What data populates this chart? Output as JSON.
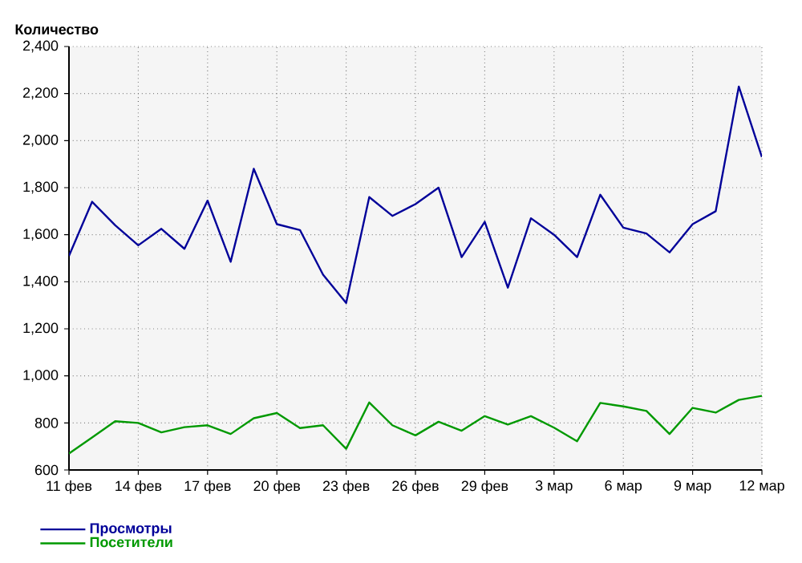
{
  "chart_data": {
    "type": "line",
    "ylabel": "Количество",
    "categories": [
      "11 фев",
      null,
      null,
      "14 фев",
      null,
      null,
      "17 фев",
      null,
      null,
      "20 фев",
      null,
      null,
      "23 фев",
      null,
      null,
      "26 фев",
      null,
      null,
      "29 фев",
      null,
      null,
      "3 мар",
      null,
      null,
      "6 мар",
      null,
      null,
      "9 мар",
      null,
      null,
      "12 мар"
    ],
    "series": [
      {
        "name": "Просмотры",
        "color": "#000099",
        "values": [
          1510,
          1740,
          1640,
          1555,
          1625,
          1540,
          1745,
          1485,
          1880,
          1645,
          1620,
          1430,
          1310,
          1760,
          1680,
          1730,
          1800,
          1505,
          1655,
          1375,
          1670,
          1600,
          1505,
          1770,
          1630,
          1605,
          1525,
          1645,
          1700,
          2230,
          1930
        ]
      },
      {
        "name": "Посетители",
        "color": "#009900",
        "values": [
          670,
          738,
          807,
          800,
          760,
          782,
          790,
          753,
          820,
          842,
          778,
          790,
          690,
          887,
          790,
          747,
          805,
          767,
          829,
          793,
          829,
          780,
          722,
          885,
          870,
          851,
          753,
          864,
          844,
          898,
          915
        ]
      }
    ],
    "ylim": [
      600,
      2400
    ],
    "yticks": [
      {
        "value": 600,
        "label": "600"
      },
      {
        "value": 800,
        "label": "800"
      },
      {
        "value": 1000,
        "label": "1,000"
      },
      {
        "value": 1200,
        "label": "1,200"
      },
      {
        "value": 1400,
        "label": "1,400"
      },
      {
        "value": 1600,
        "label": "1,600"
      },
      {
        "value": 1800,
        "label": "1,800"
      },
      {
        "value": 2000,
        "label": "2,000"
      },
      {
        "value": 2200,
        "label": "2,200"
      },
      {
        "value": 2400,
        "label": "2,400"
      }
    ],
    "grid": true,
    "legend": "bottom left",
    "marker": "none",
    "line_style": "solid"
  }
}
